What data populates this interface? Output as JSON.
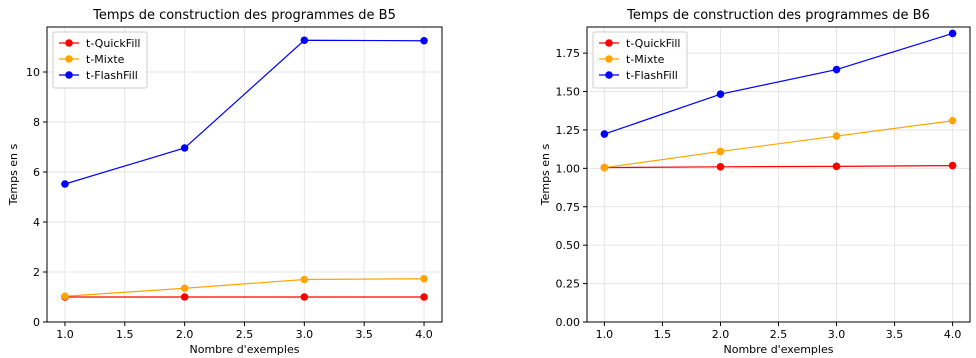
{
  "chart_data": [
    {
      "type": "line",
      "title": "Temps de construction des programmes de B5",
      "xlabel": "Nombre d'exemples",
      "ylabel": "Temps en s",
      "x": [
        1.0,
        2.0,
        3.0,
        4.0
      ],
      "xlim": [
        0.85,
        4.15
      ],
      "ylim": [
        0,
        11.8
      ],
      "xticks": [
        "1.0",
        "1.5",
        "2.0",
        "2.5",
        "3.0",
        "3.5",
        "4.0"
      ],
      "yticks": [
        "0",
        "2",
        "4",
        "6",
        "8",
        "10"
      ],
      "grid": true,
      "legend": "top-left",
      "series": [
        {
          "name": "t-QuickFill",
          "color": "#ff0000",
          "values": [
            1.0,
            1.0,
            1.0,
            1.0
          ]
        },
        {
          "name": "t-Mixte",
          "color": "#ffa500",
          "values": [
            1.03,
            1.35,
            1.7,
            1.73
          ]
        },
        {
          "name": "t-FlashFill",
          "color": "#0000ff",
          "values": [
            5.52,
            6.96,
            11.27,
            11.25
          ]
        }
      ]
    },
    {
      "type": "line",
      "title": "Temps de construction des programmes de B6",
      "xlabel": "Nombre d'exemples",
      "ylabel": "Temps en s",
      "x": [
        1.0,
        2.0,
        3.0,
        4.0
      ],
      "xlim": [
        0.85,
        4.15
      ],
      "ylim": [
        0,
        1.92
      ],
      "xticks": [
        "1.0",
        "1.5",
        "2.0",
        "2.5",
        "3.0",
        "3.5",
        "4.0"
      ],
      "yticks": [
        "0.00",
        "0.25",
        "0.50",
        "0.75",
        "1.00",
        "1.25",
        "1.50",
        "1.75"
      ],
      "grid": true,
      "legend": "top-left",
      "series": [
        {
          "name": "t-QuickFill",
          "color": "#ff0000",
          "values": [
            1.005,
            1.01,
            1.013,
            1.018
          ]
        },
        {
          "name": "t-Mixte",
          "color": "#ffa500",
          "values": [
            1.005,
            1.11,
            1.21,
            1.31
          ]
        },
        {
          "name": "t-FlashFill",
          "color": "#0000ff",
          "values": [
            1.223,
            1.483,
            1.643,
            1.878
          ]
        }
      ]
    }
  ]
}
